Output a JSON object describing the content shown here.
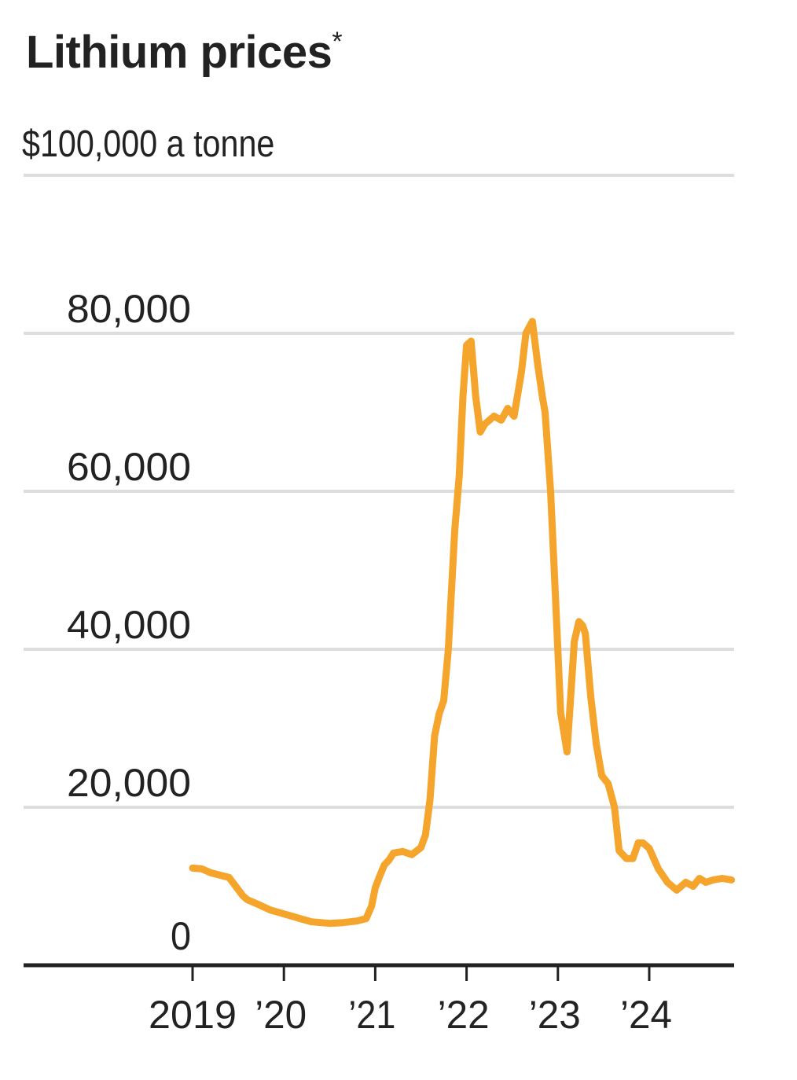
{
  "header": {
    "title": "Lithium prices",
    "title_mark": "*",
    "unit_label": "$100,000 a tonne"
  },
  "colors": {
    "line": "#F5A42C",
    "grid": "#DDDDDD",
    "axis": "#222222",
    "text": "#222222"
  },
  "chart_data": {
    "type": "line",
    "title": "Lithium prices*",
    "ylabel": "$ a tonne",
    "xlabel": "",
    "ylim": [
      0,
      100000
    ],
    "xlim": [
      2018.0,
      2025.0
    ],
    "grid": true,
    "legend": null,
    "y_ticks": [
      {
        "value": 0,
        "label": "0"
      },
      {
        "value": 20000,
        "label": "20,000"
      },
      {
        "value": 40000,
        "label": "40,000"
      },
      {
        "value": 60000,
        "label": "60,000"
      },
      {
        "value": 80000,
        "label": "80,000"
      },
      {
        "value": 100000,
        "label": "$100,000 a tonne"
      }
    ],
    "x_ticks": [
      {
        "value": 2019,
        "label": "2019"
      },
      {
        "value": 2020,
        "label": "’20"
      },
      {
        "value": 2021,
        "label": "’21"
      },
      {
        "value": 2022,
        "label": "’22"
      },
      {
        "value": 2023,
        "label": "’23"
      },
      {
        "value": 2024,
        "label": "’24"
      }
    ],
    "series": [
      {
        "name": "Lithium price",
        "x": [
          2019.0,
          2019.1,
          2019.2,
          2019.4,
          2019.55,
          2019.6,
          2019.7,
          2019.85,
          2020.0,
          2020.15,
          2020.3,
          2020.5,
          2020.65,
          2020.8,
          2020.9,
          2020.96,
          2021.0,
          2021.05,
          2021.1,
          2021.15,
          2021.2,
          2021.3,
          2021.4,
          2021.5,
          2021.55,
          2021.6,
          2021.65,
          2021.7,
          2021.75,
          2021.8,
          2021.87,
          2021.92,
          2021.96,
          2022.0,
          2022.05,
          2022.1,
          2022.15,
          2022.2,
          2022.25,
          2022.3,
          2022.38,
          2022.45,
          2022.52,
          2022.6,
          2022.65,
          2022.72,
          2022.78,
          2022.83,
          2022.86,
          2022.92,
          2022.97,
          2023.03,
          2023.1,
          2023.18,
          2023.23,
          2023.27,
          2023.3,
          2023.36,
          2023.42,
          2023.48,
          2023.55,
          2023.62,
          2023.67,
          2023.75,
          2023.82,
          2023.88,
          2023.93,
          2024.0,
          2024.1,
          2024.2,
          2024.3,
          2024.4,
          2024.48,
          2024.55,
          2024.62,
          2024.7,
          2024.8,
          2024.9
        ],
        "values": [
          12300,
          12200,
          11700,
          11100,
          8800,
          8300,
          7800,
          7000,
          6500,
          6000,
          5500,
          5300,
          5400,
          5600,
          5900,
          7500,
          9800,
          11300,
          12700,
          13300,
          14200,
          14400,
          14000,
          14900,
          16500,
          21000,
          29000,
          31800,
          33500,
          40000,
          55000,
          62000,
          72000,
          78500,
          79000,
          72000,
          67500,
          68500,
          69000,
          69500,
          69000,
          70500,
          69500,
          75000,
          80000,
          81500,
          76000,
          72000,
          70000,
          60000,
          47500,
          32000,
          27000,
          41000,
          43500,
          43000,
          42000,
          34000,
          28000,
          24000,
          23000,
          20000,
          14500,
          13500,
          13500,
          15500,
          15500,
          14800,
          12200,
          10500,
          9500,
          10500,
          10000,
          11000,
          10500,
          10800,
          11000,
          10800
        ]
      }
    ]
  }
}
